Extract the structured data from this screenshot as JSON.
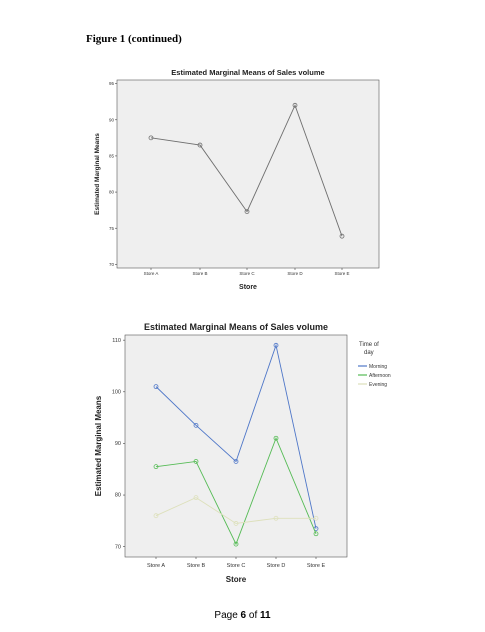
{
  "caption": "Figure 1 (continued)",
  "footer": {
    "prefix": "Page ",
    "current": "6",
    "of": " of ",
    "total": "11"
  },
  "colors": {
    "plot_bg": "#efefef",
    "line1": "#6f6f6f",
    "morning": "#4f77c8",
    "afternoon": "#55bb55",
    "evening": "#dde0bb"
  },
  "chart_data": [
    {
      "type": "line",
      "title": "Estimated Marginal Means of Sales volume",
      "xlabel": "Store",
      "ylabel": "Estimated Marginal Means",
      "categories": [
        "Store A",
        "Store B",
        "Store C",
        "Store D",
        "Store E"
      ],
      "ylim": [
        69.5,
        95.5
      ],
      "yticks": [
        70,
        75,
        80,
        85,
        90,
        95
      ],
      "grid": false,
      "series": [
        {
          "values": [
            87.5,
            86.5,
            77.3,
            92.0,
            73.9
          ],
          "color": "#6f6f6f"
        }
      ]
    },
    {
      "type": "line",
      "title": "Estimated Marginal Means of Sales volume",
      "xlabel": "Store",
      "ylabel": "Estimated Marginal Means",
      "categories": [
        "Store A",
        "Store B",
        "Store C",
        "Store D",
        "Store E"
      ],
      "ylim": [
        68,
        111
      ],
      "yticks": [
        70,
        80,
        90,
        100,
        110
      ],
      "grid": false,
      "legend": {
        "title": "Time of day",
        "position": "right"
      },
      "series": [
        {
          "name": "Morning",
          "values": [
            101.0,
            93.5,
            86.5,
            109.0,
            73.5
          ],
          "color": "#4f77c8"
        },
        {
          "name": "Afternoon",
          "values": [
            85.5,
            86.5,
            70.5,
            91.0,
            72.5
          ],
          "color": "#55bb55"
        },
        {
          "name": "Evening",
          "values": [
            76.0,
            79.5,
            74.5,
            75.5,
            75.5
          ],
          "color": "#dde0bb"
        }
      ]
    }
  ]
}
